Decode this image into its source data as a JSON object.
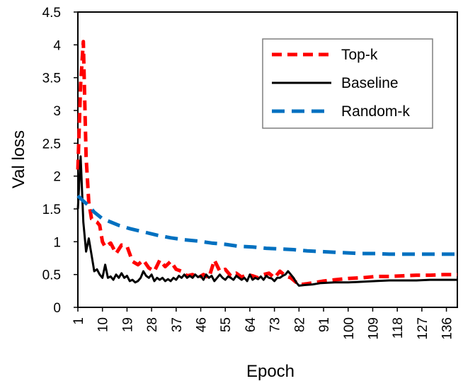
{
  "chart_data": {
    "type": "line",
    "title": "",
    "xlabel": "Epoch",
    "ylabel": "Val loss",
    "xlim": [
      1,
      140
    ],
    "ylim": [
      0,
      4.5
    ],
    "y_ticks": [
      0,
      0.5,
      1,
      1.5,
      2,
      2.5,
      3,
      3.5,
      4,
      4.5
    ],
    "y_tick_labels": [
      "0",
      "0.5",
      "1",
      "1.5",
      "2",
      "2.5",
      "3",
      "3.5",
      "4",
      "4.5"
    ],
    "x_ticks": [
      1,
      10,
      19,
      28,
      37,
      46,
      55,
      64,
      73,
      82,
      91,
      100,
      109,
      118,
      127,
      136
    ],
    "x_tick_labels": [
      "1",
      "10",
      "19",
      "28",
      "37",
      "46",
      "55",
      "64",
      "73",
      "82",
      "91",
      "100",
      "109",
      "118",
      "127",
      "136"
    ],
    "grid": false,
    "legend_position": "top-right",
    "series": [
      {
        "name": "Top-k",
        "color": "#ff0000",
        "dash": "dashed",
        "points": [
          [
            1,
            2.1
          ],
          [
            2,
            3.4
          ],
          [
            3,
            4.05
          ],
          [
            4,
            2.3
          ],
          [
            5,
            1.6
          ],
          [
            6,
            1.35
          ],
          [
            8,
            1.3
          ],
          [
            9,
            1.25
          ],
          [
            10,
            1.0
          ],
          [
            11,
            0.92
          ],
          [
            13,
            0.98
          ],
          [
            15,
            0.82
          ],
          [
            17,
            0.95
          ],
          [
            19,
            0.93
          ],
          [
            21,
            0.7
          ],
          [
            23,
            0.65
          ],
          [
            25,
            0.72
          ],
          [
            27,
            0.6
          ],
          [
            29,
            0.55
          ],
          [
            31,
            0.72
          ],
          [
            33,
            0.62
          ],
          [
            35,
            0.7
          ],
          [
            37,
            0.58
          ],
          [
            39,
            0.55
          ],
          [
            41,
            0.48
          ],
          [
            43,
            0.5
          ],
          [
            45,
            0.45
          ],
          [
            47,
            0.5
          ],
          [
            49,
            0.45
          ],
          [
            51,
            0.72
          ],
          [
            53,
            0.55
          ],
          [
            55,
            0.58
          ],
          [
            57,
            0.48
          ],
          [
            59,
            0.52
          ],
          [
            61,
            0.46
          ],
          [
            63,
            0.5
          ],
          [
            65,
            0.48
          ],
          [
            67,
            0.45
          ],
          [
            69,
            0.5
          ],
          [
            71,
            0.52
          ],
          [
            73,
            0.45
          ],
          [
            75,
            0.55
          ],
          [
            77,
            0.48
          ],
          [
            79,
            0.45
          ],
          [
            81,
            0.38
          ],
          [
            83,
            0.35
          ],
          [
            85,
            0.36
          ],
          [
            88,
            0.38
          ],
          [
            91,
            0.4
          ],
          [
            95,
            0.42
          ],
          [
            100,
            0.44
          ],
          [
            105,
            0.45
          ],
          [
            110,
            0.47
          ],
          [
            115,
            0.47
          ],
          [
            120,
            0.48
          ],
          [
            125,
            0.49
          ],
          [
            130,
            0.49
          ],
          [
            135,
            0.5
          ],
          [
            140,
            0.5
          ]
        ]
      },
      {
        "name": "Baseline",
        "color": "#000000",
        "dash": "solid",
        "points": [
          [
            1,
            1.5
          ],
          [
            2,
            2.3
          ],
          [
            3,
            1.3
          ],
          [
            4,
            0.85
          ],
          [
            5,
            1.05
          ],
          [
            6,
            0.8
          ],
          [
            7,
            0.55
          ],
          [
            8,
            0.58
          ],
          [
            9,
            0.5
          ],
          [
            10,
            0.45
          ],
          [
            11,
            0.65
          ],
          [
            12,
            0.45
          ],
          [
            13,
            0.47
          ],
          [
            14,
            0.42
          ],
          [
            15,
            0.5
          ],
          [
            16,
            0.45
          ],
          [
            17,
            0.52
          ],
          [
            18,
            0.45
          ],
          [
            19,
            0.48
          ],
          [
            20,
            0.4
          ],
          [
            21,
            0.42
          ],
          [
            22,
            0.38
          ],
          [
            23,
            0.4
          ],
          [
            24,
            0.45
          ],
          [
            25,
            0.55
          ],
          [
            26,
            0.48
          ],
          [
            27,
            0.45
          ],
          [
            28,
            0.5
          ],
          [
            29,
            0.4
          ],
          [
            30,
            0.45
          ],
          [
            31,
            0.42
          ],
          [
            32,
            0.45
          ],
          [
            33,
            0.4
          ],
          [
            34,
            0.43
          ],
          [
            35,
            0.4
          ],
          [
            36,
            0.45
          ],
          [
            37,
            0.42
          ],
          [
            38,
            0.48
          ],
          [
            39,
            0.45
          ],
          [
            40,
            0.5
          ],
          [
            41,
            0.45
          ],
          [
            42,
            0.48
          ],
          [
            43,
            0.45
          ],
          [
            44,
            0.5
          ],
          [
            45,
            0.46
          ],
          [
            46,
            0.48
          ],
          [
            47,
            0.42
          ],
          [
            48,
            0.5
          ],
          [
            49,
            0.45
          ],
          [
            50,
            0.48
          ],
          [
            51,
            0.4
          ],
          [
            52,
            0.45
          ],
          [
            53,
            0.5
          ],
          [
            54,
            0.45
          ],
          [
            55,
            0.42
          ],
          [
            56,
            0.47
          ],
          [
            57,
            0.45
          ],
          [
            58,
            0.42
          ],
          [
            59,
            0.48
          ],
          [
            60,
            0.45
          ],
          [
            61,
            0.42
          ],
          [
            62,
            0.45
          ],
          [
            63,
            0.4
          ],
          [
            64,
            0.5
          ],
          [
            65,
            0.42
          ],
          [
            66,
            0.45
          ],
          [
            67,
            0.43
          ],
          [
            68,
            0.47
          ],
          [
            69,
            0.42
          ],
          [
            70,
            0.48
          ],
          [
            71,
            0.45
          ],
          [
            72,
            0.44
          ],
          [
            73,
            0.4
          ],
          [
            74,
            0.45
          ],
          [
            75,
            0.45
          ],
          [
            76,
            0.48
          ],
          [
            77,
            0.5
          ],
          [
            78,
            0.55
          ],
          [
            79,
            0.5
          ],
          [
            80,
            0.45
          ],
          [
            81,
            0.38
          ],
          [
            82,
            0.33
          ],
          [
            84,
            0.34
          ],
          [
            87,
            0.35
          ],
          [
            90,
            0.37
          ],
          [
            95,
            0.38
          ],
          [
            100,
            0.38
          ],
          [
            105,
            0.39
          ],
          [
            110,
            0.4
          ],
          [
            115,
            0.41
          ],
          [
            120,
            0.41
          ],
          [
            125,
            0.41
          ],
          [
            130,
            0.42
          ],
          [
            135,
            0.42
          ],
          [
            140,
            0.42
          ]
        ]
      },
      {
        "name": "Random-k",
        "color": "#0070c0",
        "dash": "dashed",
        "points": [
          [
            1,
            1.7
          ],
          [
            3,
            1.62
          ],
          [
            5,
            1.55
          ],
          [
            7,
            1.45
          ],
          [
            10,
            1.35
          ],
          [
            13,
            1.3
          ],
          [
            16,
            1.25
          ],
          [
            20,
            1.2
          ],
          [
            25,
            1.15
          ],
          [
            30,
            1.1
          ],
          [
            35,
            1.06
          ],
          [
            40,
            1.03
          ],
          [
            45,
            1.01
          ],
          [
            50,
            0.98
          ],
          [
            55,
            0.96
          ],
          [
            60,
            0.93
          ],
          [
            65,
            0.92
          ],
          [
            70,
            0.9
          ],
          [
            75,
            0.89
          ],
          [
            80,
            0.88
          ],
          [
            85,
            0.86
          ],
          [
            90,
            0.85
          ],
          [
            95,
            0.84
          ],
          [
            100,
            0.83
          ],
          [
            105,
            0.82
          ],
          [
            110,
            0.82
          ],
          [
            115,
            0.81
          ],
          [
            120,
            0.81
          ],
          [
            125,
            0.81
          ],
          [
            130,
            0.81
          ],
          [
            135,
            0.81
          ],
          [
            140,
            0.81
          ]
        ]
      }
    ]
  }
}
